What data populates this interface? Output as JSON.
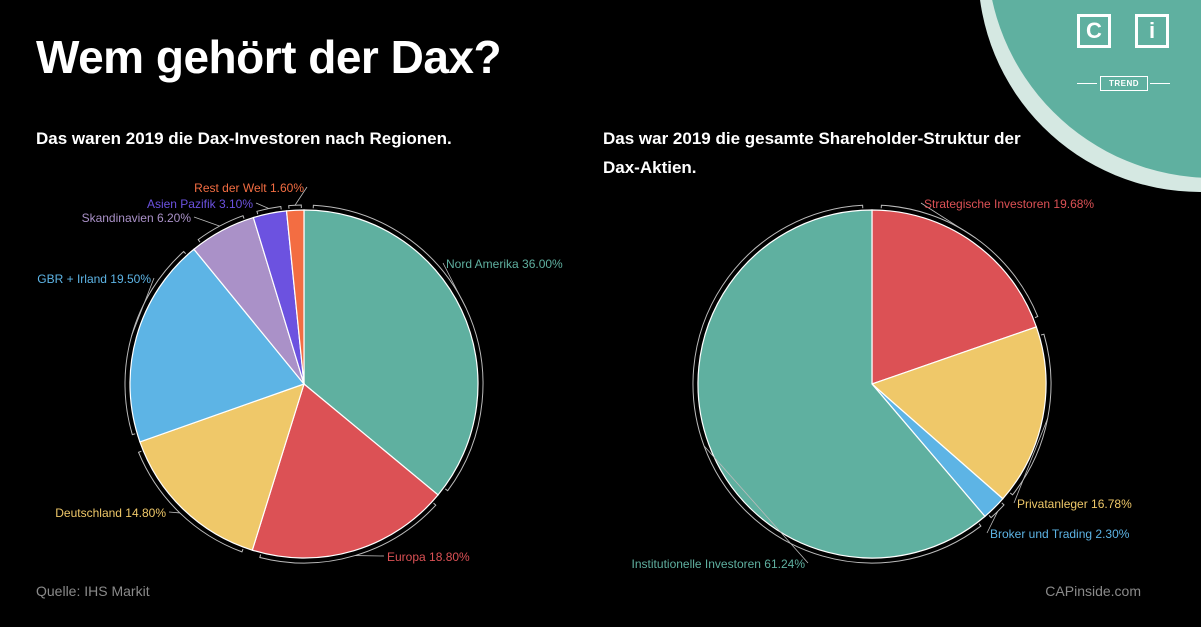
{
  "title": "Wem gehört der Dax?",
  "source": "Quelle: IHS Markit",
  "website": "CAPinside.com",
  "logo": {
    "letters": [
      "C",
      "i"
    ],
    "tag": "TREND",
    "accent": "#5fb0a0"
  },
  "chart_data": [
    {
      "type": "pie",
      "title": "Das waren 2019 die Dax-Investoren nach Regionen.",
      "slices": [
        {
          "label": "Nord Amerika 36.00%",
          "value": 36.0,
          "color": "#5fb0a0"
        },
        {
          "label": "Europa 18.80%",
          "value": 18.8,
          "color": "#dc5155"
        },
        {
          "label": "Deutschland 14.80%",
          "value": 14.8,
          "color": "#efc869"
        },
        {
          "label": "GBR + Irland 19.50%",
          "value": 19.5,
          "color": "#5db4e5"
        },
        {
          "label": "Skandinavien 6.20%",
          "value": 6.2,
          "color": "#aa91c8"
        },
        {
          "label": "Asien Pazifik 3.10%",
          "value": 3.1,
          "color": "#6c52e0"
        },
        {
          "label": "Rest der Welt 1.60%",
          "value": 1.6,
          "color": "#f36d42"
        }
      ]
    },
    {
      "type": "pie",
      "title": "Das war 2019 die gesamte Shareholder-Struktur der Dax-Aktien.",
      "slices": [
        {
          "label": "Strategische Investoren 19.68%",
          "value": 19.68,
          "color": "#dc5155"
        },
        {
          "label": "Privatanleger 16.78%",
          "value": 16.78,
          "color": "#efc869"
        },
        {
          "label": "Broker und Trading 2.30%",
          "value": 2.3,
          "color": "#5db4e5"
        },
        {
          "label": "Institutionelle Investoren 61.24%",
          "value": 61.24,
          "color": "#5fb0a0"
        }
      ]
    }
  ]
}
